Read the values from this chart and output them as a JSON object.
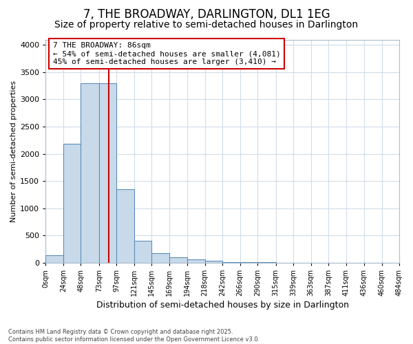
{
  "title": "7, THE BROADWAY, DARLINGTON, DL1 1EG",
  "subtitle": "Size of property relative to semi-detached houses in Darlington",
  "xlabel": "Distribution of semi-detached houses by size in Darlington",
  "ylabel": "Number of semi-detached properties",
  "property_size": 86,
  "annotation_text": "7 THE BROADWAY: 86sqm\n← 54% of semi-detached houses are smaller (4,081)\n45% of semi-detached houses are larger (3,410) →",
  "footer_line1": "Contains HM Land Registry data © Crown copyright and database right 2025.",
  "footer_line2": "Contains public sector information licensed under the Open Government Licence v3.0.",
  "bar_edges": [
    0,
    24,
    48,
    73,
    97,
    121,
    145,
    169,
    194,
    218,
    242,
    266,
    290,
    315,
    339,
    363,
    387,
    411,
    436,
    460,
    484
  ],
  "bar_heights": [
    130,
    2180,
    3300,
    3300,
    1350,
    400,
    175,
    100,
    55,
    30,
    10,
    5,
    3,
    1,
    0,
    0,
    0,
    0,
    0,
    0
  ],
  "bar_color": "#c8daea",
  "bar_edge_color": "#5b8db8",
  "vline_color": "#cc0000",
  "vline_x": 86,
  "annotation_box_edge_color": "#cc0000",
  "background_color": "#ffffff",
  "plot_bg_color": "#ffffff",
  "grid_color": "#d0dce8",
  "ylim": [
    0,
    4100
  ],
  "xlim": [
    0,
    484
  ],
  "title_fontsize": 12,
  "subtitle_fontsize": 10,
  "tick_labels": [
    "0sqm",
    "24sqm",
    "48sqm",
    "73sqm",
    "97sqm",
    "121sqm",
    "145sqm",
    "169sqm",
    "194sqm",
    "218sqm",
    "242sqm",
    "266sqm",
    "290sqm",
    "315sqm",
    "339sqm",
    "363sqm",
    "387sqm",
    "411sqm",
    "436sqm",
    "460sqm",
    "484sqm"
  ],
  "yticks": [
    0,
    500,
    1000,
    1500,
    2000,
    2500,
    3000,
    3500,
    4000
  ]
}
